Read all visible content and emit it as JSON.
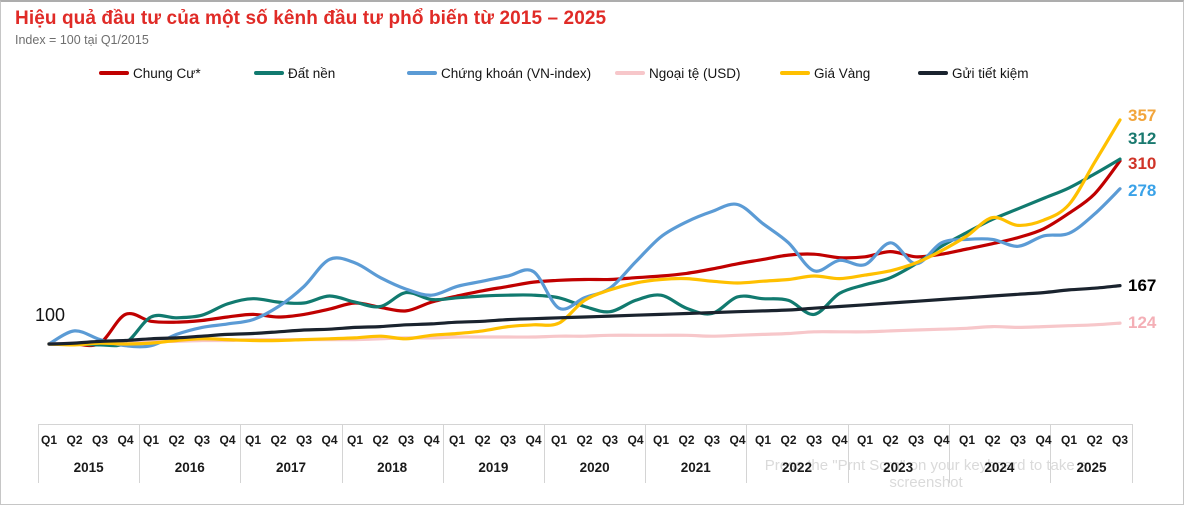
{
  "header": {
    "title": "Hiệu quả đầu tư của một số kênh đầu tư phổ biến từ 2015 – 2025",
    "subtitle": "Index = 100 tại Q1/2015"
  },
  "baseline_label": "100",
  "watermark": {
    "line1": "Press the \"Prnt Scrn\" on your keyboard to take a",
    "line2": "screenshot"
  },
  "colors": {
    "title_red": "#e02b27",
    "axis_line_gray": "#d4d4d4",
    "watermark_gray": "#dadada"
  },
  "chart_data": {
    "type": "line",
    "title": "Hiệu quả đầu tư của một số kênh đầu tư phổ biến từ 2015 – 2025",
    "subtitle": "Index = 100 tại Q1/2015",
    "baseline": 100,
    "grid": false,
    "legend_position": "top",
    "x_axis": {
      "years": [
        {
          "label": "2015",
          "quarters": [
            "Q1",
            "Q2",
            "Q3",
            "Q4"
          ]
        },
        {
          "label": "2016",
          "quarters": [
            "Q1",
            "Q2",
            "Q3",
            "Q4"
          ]
        },
        {
          "label": "2017",
          "quarters": [
            "Q1",
            "Q2",
            "Q3",
            "Q4"
          ]
        },
        {
          "label": "2018",
          "quarters": [
            "Q1",
            "Q2",
            "Q3",
            "Q4"
          ]
        },
        {
          "label": "2019",
          "quarters": [
            "Q1",
            "Q2",
            "Q3",
            "Q4"
          ]
        },
        {
          "label": "2020",
          "quarters": [
            "Q1",
            "Q2",
            "Q3",
            "Q4"
          ]
        },
        {
          "label": "2021",
          "quarters": [
            "Q1",
            "Q2",
            "Q3",
            "Q4"
          ]
        },
        {
          "label": "2022",
          "quarters": [
            "Q1",
            "Q2",
            "Q3",
            "Q4"
          ]
        },
        {
          "label": "2023",
          "quarters": [
            "Q1",
            "Q2",
            "Q3",
            "Q4"
          ]
        },
        {
          "label": "2024",
          "quarters": [
            "Q1",
            "Q2",
            "Q3",
            "Q4"
          ]
        },
        {
          "label": "2025",
          "quarters": [
            "Q1",
            "Q2",
            "Q3"
          ]
        }
      ]
    },
    "ylim": [
      90,
      380
    ],
    "series": [
      {
        "name": "Chung Cư*",
        "color": "#c00000",
        "label_color": "#d03428",
        "end_label": "310",
        "values": [
          100,
          100,
          101,
          134,
          126,
          125,
          127,
          131,
          134,
          131,
          134,
          140,
          147,
          142,
          138,
          148,
          155,
          161,
          166,
          171,
          173,
          174,
          174,
          176,
          178,
          181,
          186,
          192,
          197,
          202,
          203,
          199,
          200,
          206,
          200,
          203,
          209,
          215,
          222,
          232,
          250,
          272,
          310
        ]
      },
      {
        "name": "Đất nền",
        "color": "#117a6f",
        "label_color": "#19796f",
        "end_label": "312",
        "values": [
          100,
          100,
          99,
          101,
          131,
          130,
          133,
          146,
          152,
          148,
          147,
          155,
          148,
          143,
          159,
          151,
          153,
          155,
          156,
          156,
          153,
          143,
          137,
          150,
          156,
          141,
          135,
          154,
          152,
          150,
          134,
          158,
          168,
          176,
          192,
          212,
          228,
          243,
          255,
          267,
          279,
          295,
          312
        ]
      },
      {
        "name": "Chứng khoán (VN-index)",
        "color": "#5b9bd5",
        "label_color": "#3aa2e8",
        "end_label": "278",
        "values": [
          100,
          115,
          105,
          98,
          98,
          111,
          119,
          123,
          128,
          143,
          166,
          197,
          193,
          176,
          163,
          156,
          166,
          172,
          178,
          183,
          141,
          153,
          164,
          194,
          223,
          240,
          252,
          260,
          238,
          216,
          184,
          196,
          191,
          216,
          192,
          216,
          220,
          220,
          212,
          224,
          227,
          249,
          278
        ]
      },
      {
        "name": "Ngoại tệ (USD)",
        "color": "#f7c7ca",
        "label_color": "#f4afb6",
        "end_label": "124",
        "values": [
          100,
          101,
          102,
          103,
          103,
          103,
          104,
          104,
          105,
          105,
          105,
          105,
          105,
          106,
          107,
          107,
          108,
          108,
          108,
          108,
          109,
          109,
          110,
          110,
          110,
          110,
          109,
          110,
          111,
          112,
          114,
          114,
          114,
          115,
          116,
          117,
          118,
          120,
          119,
          120,
          121,
          122,
          124
        ]
      },
      {
        "name": "Giá Vàng",
        "color": "#ffc000",
        "label_color": "#f2a53c",
        "end_label": "357",
        "values": [
          100,
          99,
          101,
          100,
          101,
          104,
          106,
          105,
          104,
          104,
          105,
          106,
          107,
          109,
          106,
          110,
          112,
          115,
          120,
          122,
          124,
          150,
          162,
          170,
          174,
          175,
          172,
          170,
          172,
          174,
          178,
          175,
          179,
          184,
          193,
          207,
          224,
          245,
          236,
          242,
          260,
          308,
          357
        ]
      },
      {
        "name": "Gửi tiết kiệm",
        "color": "#1a232e",
        "label_color": "#000000",
        "end_label": "167",
        "values": [
          100,
          101,
          103,
          104,
          106,
          107,
          109,
          111,
          112,
          114,
          116,
          117,
          119,
          120,
          122,
          123,
          125,
          126,
          128,
          129,
          130,
          131,
          132,
          133,
          134,
          135,
          136,
          137,
          138,
          139,
          141,
          143,
          145,
          147,
          149,
          151,
          153,
          155,
          157,
          159,
          162,
          164,
          167
        ]
      }
    ]
  }
}
